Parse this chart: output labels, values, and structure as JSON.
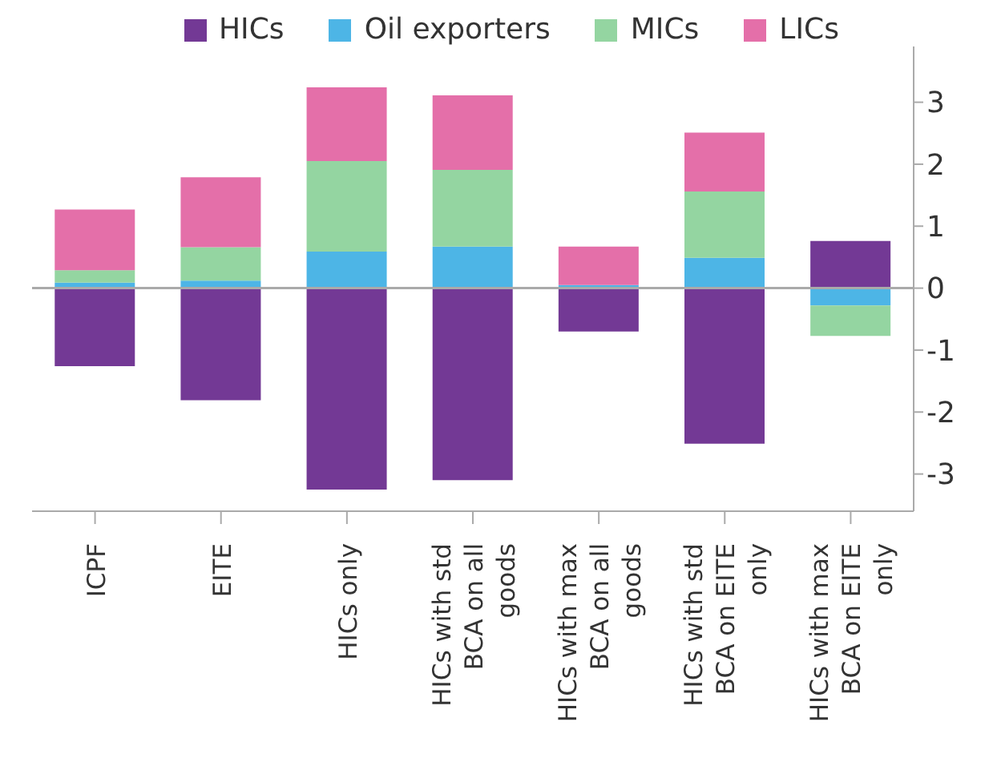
{
  "chart_data": {
    "type": "bar",
    "stacked": true,
    "categories": [
      "ICPF",
      "EITE",
      "HICs only",
      "HICs with std BCA on all goods",
      "HICs with max BCA on all goods",
      "HICs with std BCA on EITE only",
      "HICs with max BCA on EITE only"
    ],
    "series": [
      {
        "name": "HICs",
        "color": "#733995",
        "values": [
          -1.26,
          -1.81,
          -3.25,
          -3.1,
          -0.7,
          -2.51,
          0.76
        ]
      },
      {
        "name": "Oil exporters",
        "color": "#4db5e6",
        "values": [
          0.09,
          0.12,
          0.59,
          0.67,
          0.05,
          0.49,
          -0.28
        ]
      },
      {
        "name": "MICs",
        "color": "#94d5a1",
        "values": [
          0.2,
          0.54,
          1.46,
          1.24,
          0,
          1.07,
          -0.49
        ]
      },
      {
        "name": "LICs",
        "color": "#e46fa9",
        "values": [
          0.98,
          1.13,
          1.19,
          1.2,
          0.62,
          0.95,
          0
        ]
      }
    ],
    "ylim": [
      -3.6,
      3.9
    ],
    "yticks": [
      -3,
      -2,
      -1,
      0,
      1,
      2,
      3
    ],
    "ref_lines": [
      {
        "axis": "y",
        "value": 0,
        "color": "#aaaaaa"
      }
    ],
    "grid": false,
    "legend": "top"
  }
}
